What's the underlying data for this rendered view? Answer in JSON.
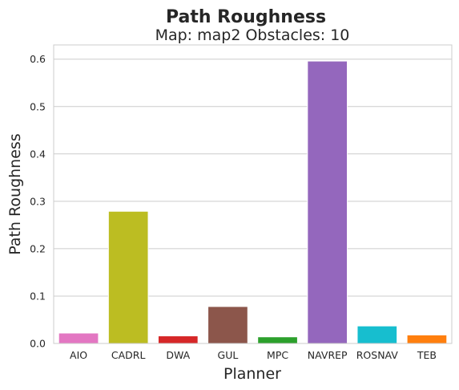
{
  "chart_data": {
    "type": "bar",
    "title": "Path Roughness",
    "subtitle": "Map: map2 Obstacles: 10",
    "xlabel": "Planner",
    "ylabel": "Path Roughness",
    "categories": [
      "AIO",
      "CADRL",
      "DWA",
      "GUL",
      "MPC",
      "NAVREP",
      "ROSNAV",
      "TEB"
    ],
    "values": [
      0.022,
      0.279,
      0.016,
      0.078,
      0.014,
      0.596,
      0.037,
      0.018
    ],
    "colors": [
      "#e377c2",
      "#bcbd22",
      "#d62728",
      "#8c564b",
      "#2ca02c",
      "#9467bd",
      "#17becf",
      "#ff7f0e"
    ],
    "ylim": [
      0,
      0.63
    ],
    "yticks": [
      0.0,
      0.1,
      0.2,
      0.3,
      0.4,
      0.5,
      0.6
    ],
    "grid": true,
    "legend": "none"
  }
}
